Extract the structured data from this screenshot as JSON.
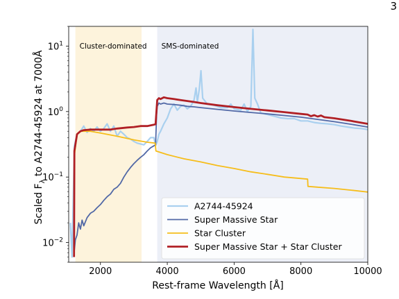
{
  "page_number": "3",
  "chart_data": {
    "type": "line",
    "xlabel": "Rest-frame Wavelength [Å]",
    "ylabel_main": "Scaled F",
    "ylabel_sub": "λ",
    "ylabel_rest": " to A2744-45924 at 7000Å",
    "xlim": [
      1050,
      10000
    ],
    "ylim": [
      0.005,
      20
    ],
    "yscale": "log",
    "xticks": [
      {
        "v": 2000,
        "label": "2000"
      },
      {
        "v": 4000,
        "label": "4000"
      },
      {
        "v": 6000,
        "label": "6000"
      },
      {
        "v": 8000,
        "label": "8000"
      },
      {
        "v": 10000,
        "label": "10000"
      }
    ],
    "yticks": [
      {
        "v": 0.01,
        "base": "10",
        "exp": "−2"
      },
      {
        "v": 0.1,
        "base": "10",
        "exp": "−1"
      },
      {
        "v": 1,
        "base": "10",
        "exp": "0"
      },
      {
        "v": 10,
        "base": "10",
        "exp": "1"
      }
    ],
    "regions": [
      {
        "label": "Cluster-dominated",
        "x0": 1250,
        "x1": 3230,
        "color": "#fdf3dc"
      },
      {
        "label": "SMS-dominated",
        "x0": 3700,
        "x1": 10000,
        "color": "#eceff7"
      }
    ],
    "legend_position": "lower-right",
    "series": [
      {
        "name": "A2744-45924",
        "color": "#a9d0ef",
        "width": 2.2,
        "points": [
          [
            1100,
            0.02
          ],
          [
            1150,
            0.006
          ],
          [
            1220,
            0.3
          ],
          [
            1300,
            0.45
          ],
          [
            1400,
            0.5
          ],
          [
            1500,
            0.6
          ],
          [
            1600,
            0.48
          ],
          [
            1700,
            0.55
          ],
          [
            1800,
            0.5
          ],
          [
            1900,
            0.58
          ],
          [
            2000,
            0.5
          ],
          [
            2100,
            0.55
          ],
          [
            2200,
            0.65
          ],
          [
            2300,
            0.5
          ],
          [
            2400,
            0.6
          ],
          [
            2500,
            0.42
          ],
          [
            2600,
            0.5
          ],
          [
            2700,
            0.45
          ],
          [
            2800,
            0.4
          ],
          [
            2900,
            0.38
          ],
          [
            3000,
            0.35
          ],
          [
            3100,
            0.33
          ],
          [
            3200,
            0.32
          ],
          [
            3300,
            0.31
          ],
          [
            3400,
            0.35
          ],
          [
            3500,
            0.4
          ],
          [
            3600,
            0.4
          ],
          [
            3650,
            0.3
          ],
          [
            3700,
            0.35
          ],
          [
            3750,
            0.45
          ],
          [
            3800,
            0.5
          ],
          [
            3900,
            0.65
          ],
          [
            4000,
            0.8
          ],
          [
            4100,
            1.1
          ],
          [
            4200,
            1.3
          ],
          [
            4300,
            1.05
          ],
          [
            4400,
            1.2
          ],
          [
            4500,
            1.25
          ],
          [
            4600,
            1.1
          ],
          [
            4700,
            1.2
          ],
          [
            4800,
            1.5
          ],
          [
            4860,
            2.3
          ],
          [
            4900,
            1.4
          ],
          [
            4959,
            2.2
          ],
          [
            5007,
            4.2
          ],
          [
            5060,
            1.6
          ],
          [
            5200,
            1.3
          ],
          [
            5400,
            1.25
          ],
          [
            5600,
            1.15
          ],
          [
            5800,
            1.15
          ],
          [
            5900,
            1.3
          ],
          [
            6000,
            1.1
          ],
          [
            6200,
            1.05
          ],
          [
            6300,
            1.3
          ],
          [
            6400,
            1.0
          ],
          [
            6500,
            1.2
          ],
          [
            6563,
            18
          ],
          [
            6620,
            1.6
          ],
          [
            6700,
            1.3
          ],
          [
            6800,
            0.95
          ],
          [
            7000,
            0.9
          ],
          [
            7200,
            0.85
          ],
          [
            7400,
            0.8
          ],
          [
            7600,
            0.78
          ],
          [
            7800,
            0.78
          ],
          [
            8000,
            0.72
          ],
          [
            8200,
            0.72
          ],
          [
            8400,
            0.68
          ],
          [
            8600,
            0.66
          ],
          [
            8800,
            0.65
          ],
          [
            9000,
            0.63
          ],
          [
            9200,
            0.6
          ],
          [
            9400,
            0.58
          ],
          [
            9600,
            0.56
          ],
          [
            9800,
            0.55
          ],
          [
            10000,
            0.53
          ]
        ]
      },
      {
        "name": "Super Massive Star",
        "color": "#5168a6",
        "width": 1.8,
        "points": [
          [
            1200,
            0.006
          ],
          [
            1250,
            0.011
          ],
          [
            1300,
            0.013
          ],
          [
            1350,
            0.02
          ],
          [
            1400,
            0.016
          ],
          [
            1450,
            0.022
          ],
          [
            1500,
            0.018
          ],
          [
            1600,
            0.024
          ],
          [
            1700,
            0.028
          ],
          [
            1800,
            0.03
          ],
          [
            1900,
            0.034
          ],
          [
            2000,
            0.038
          ],
          [
            2100,
            0.044
          ],
          [
            2200,
            0.05
          ],
          [
            2300,
            0.055
          ],
          [
            2400,
            0.065
          ],
          [
            2500,
            0.07
          ],
          [
            2600,
            0.08
          ],
          [
            2700,
            0.1
          ],
          [
            2800,
            0.12
          ],
          [
            2900,
            0.14
          ],
          [
            3000,
            0.16
          ],
          [
            3100,
            0.18
          ],
          [
            3200,
            0.2
          ],
          [
            3300,
            0.22
          ],
          [
            3400,
            0.25
          ],
          [
            3500,
            0.28
          ],
          [
            3600,
            0.3
          ],
          [
            3650,
            0.31
          ],
          [
            3680,
            0.9
          ],
          [
            3700,
            1.2
          ],
          [
            3750,
            1.35
          ],
          [
            3800,
            1.3
          ],
          [
            3900,
            1.35
          ],
          [
            4000,
            1.3
          ],
          [
            4200,
            1.28
          ],
          [
            4400,
            1.25
          ],
          [
            4600,
            1.2
          ],
          [
            4800,
            1.18
          ],
          [
            5000,
            1.15
          ],
          [
            5500,
            1.08
          ],
          [
            6000,
            1.02
          ],
          [
            6500,
            0.97
          ],
          [
            7000,
            0.92
          ],
          [
            7500,
            0.87
          ],
          [
            8000,
            0.82
          ],
          [
            8500,
            0.76
          ],
          [
            9000,
            0.7
          ],
          [
            9500,
            0.64
          ],
          [
            10000,
            0.58
          ]
        ]
      },
      {
        "name": "Star Cluster",
        "color": "#f6bd1a",
        "width": 1.8,
        "points": [
          [
            1205,
            0.006
          ],
          [
            1215,
            0.2
          ],
          [
            1300,
            0.45
          ],
          [
            1400,
            0.5
          ],
          [
            1500,
            0.5
          ],
          [
            1700,
            0.5
          ],
          [
            2000,
            0.47
          ],
          [
            2500,
            0.42
          ],
          [
            3000,
            0.37
          ],
          [
            3400,
            0.34
          ],
          [
            3640,
            0.33
          ],
          [
            3660,
            0.25
          ],
          [
            4000,
            0.22
          ],
          [
            4500,
            0.19
          ],
          [
            5000,
            0.17
          ],
          [
            5500,
            0.15
          ],
          [
            6000,
            0.135
          ],
          [
            6500,
            0.12
          ],
          [
            7000,
            0.11
          ],
          [
            7500,
            0.1
          ],
          [
            8000,
            0.095
          ],
          [
            8200,
            0.093
          ],
          [
            8210,
            0.072
          ],
          [
            8500,
            0.07
          ],
          [
            9000,
            0.067
          ],
          [
            9500,
            0.063
          ],
          [
            10000,
            0.059
          ]
        ]
      },
      {
        "name": "Super Massive Star + Star Cluster",
        "color": "#b01f24",
        "width": 2.8,
        "points": [
          [
            1210,
            0.006
          ],
          [
            1220,
            0.25
          ],
          [
            1300,
            0.45
          ],
          [
            1400,
            0.5
          ],
          [
            1500,
            0.52
          ],
          [
            1700,
            0.53
          ],
          [
            2000,
            0.53
          ],
          [
            2300,
            0.53
          ],
          [
            2500,
            0.55
          ],
          [
            2800,
            0.57
          ],
          [
            3000,
            0.58
          ],
          [
            3200,
            0.6
          ],
          [
            3400,
            0.6
          ],
          [
            3600,
            0.63
          ],
          [
            3650,
            0.64
          ],
          [
            3680,
            1.1
          ],
          [
            3700,
            1.5
          ],
          [
            3750,
            1.6
          ],
          [
            3800,
            1.55
          ],
          [
            3900,
            1.65
          ],
          [
            4000,
            1.6
          ],
          [
            4200,
            1.55
          ],
          [
            4400,
            1.5
          ],
          [
            4600,
            1.45
          ],
          [
            4800,
            1.4
          ],
          [
            5000,
            1.35
          ],
          [
            5500,
            1.25
          ],
          [
            6000,
            1.17
          ],
          [
            6500,
            1.1
          ],
          [
            7000,
            1.04
          ],
          [
            7500,
            0.98
          ],
          [
            8000,
            0.92
          ],
          [
            8200,
            0.9
          ],
          [
            8300,
            0.85
          ],
          [
            8400,
            0.88
          ],
          [
            8500,
            0.84
          ],
          [
            8600,
            0.87
          ],
          [
            8700,
            0.82
          ],
          [
            9000,
            0.79
          ],
          [
            9500,
            0.72
          ],
          [
            10000,
            0.65
          ]
        ]
      }
    ]
  }
}
